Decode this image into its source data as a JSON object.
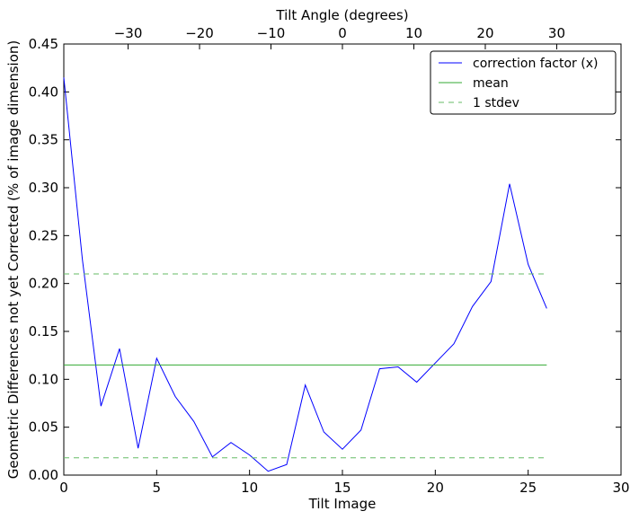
{
  "chart_data": {
    "type": "line",
    "xlabel": "Tilt Image",
    "ylabel": "Geometric Differences not yet Corrected (% of image dimension)",
    "top_xlabel": "Tilt Angle (degrees)",
    "xlim": [
      0,
      30
    ],
    "ylim": [
      0,
      0.45
    ],
    "top_xlim": [
      -39,
      39
    ],
    "x_ticks": [
      0,
      5,
      10,
      15,
      20,
      25,
      30
    ],
    "y_ticks": [
      0.0,
      0.05,
      0.1,
      0.15,
      0.2,
      0.25,
      0.3,
      0.35,
      0.4,
      0.45
    ],
    "x_tick_labels": [
      "0",
      "5",
      "10",
      "15",
      "20",
      "25",
      "30"
    ],
    "y_tick_labels": [
      "0.00",
      "0.05",
      "0.10",
      "0.15",
      "0.20",
      "0.25",
      "0.30",
      "0.35",
      "0.40",
      "0.45"
    ],
    "top_ticks": [
      -30,
      -20,
      -10,
      0,
      10,
      20,
      30
    ],
    "top_tick_labels": [
      "−30",
      "−20",
      "−10",
      "0",
      "10",
      "20",
      "30"
    ],
    "grid": false,
    "legend_position": "top-right",
    "series": [
      {
        "name": "correction factor (x)",
        "color": "#0000ff",
        "style": "solid",
        "x": [
          0,
          1,
          2,
          3,
          4,
          5,
          6,
          7,
          8,
          9,
          10,
          11,
          12,
          13,
          14,
          15,
          16,
          17,
          18,
          19,
          20,
          21,
          22,
          23,
          24,
          25,
          26
        ],
        "y": [
          0.415,
          0.225,
          0.072,
          0.132,
          0.028,
          0.122,
          0.082,
          0.056,
          0.019,
          0.034,
          0.021,
          0.004,
          0.011,
          0.094,
          0.045,
          0.027,
          0.047,
          0.111,
          0.113,
          0.097,
          0.117,
          0.137,
          0.176,
          0.202,
          0.304,
          0.22,
          0.174
        ]
      },
      {
        "name": "mean",
        "color": "#33aa33",
        "style": "solid",
        "x": [
          0,
          26
        ],
        "y": [
          0.115,
          0.115
        ]
      },
      {
        "name": "1 stdev",
        "color": "#66bb66",
        "style": "dashed",
        "x": [
          0,
          26
        ],
        "y": [
          0.21,
          0.21
        ]
      },
      {
        "name": "",
        "color": "#66bb66",
        "style": "dashed",
        "x": [
          0,
          26
        ],
        "y": [
          0.018,
          0.018
        ]
      }
    ]
  }
}
